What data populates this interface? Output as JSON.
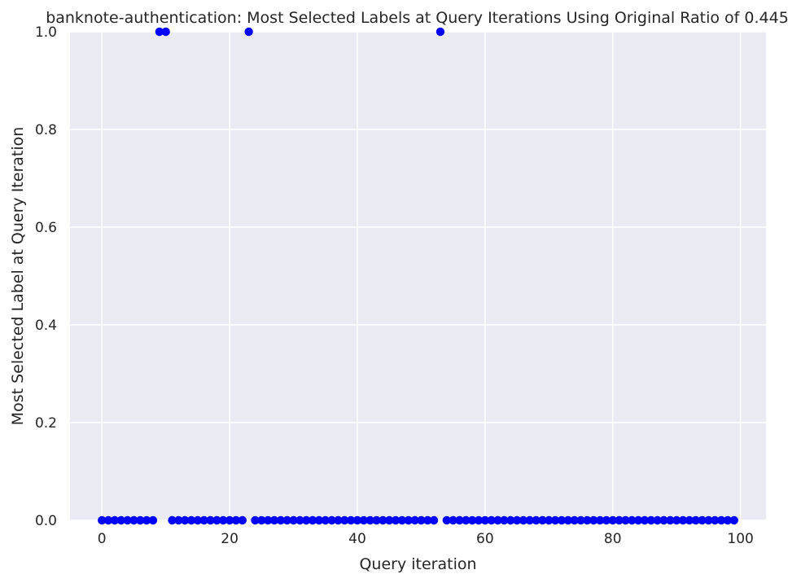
{
  "chart_data": {
    "type": "scatter",
    "title": "banknote-authentication: Most Selected Labels at Query Iterations Using Original Ratio of 0.445",
    "xlabel": "Query iteration",
    "ylabel": "Most Selected Label at Query Iteration",
    "xlim": [
      -5,
      104
    ],
    "ylim": [
      0,
      1
    ],
    "xticks": [
      0,
      20,
      40,
      60,
      80,
      100
    ],
    "yticks": [
      0.0,
      0.2,
      0.4,
      0.6,
      0.8,
      1.0
    ],
    "xtick_labels": [
      "0",
      "20",
      "40",
      "60",
      "80",
      "100"
    ],
    "ytick_labels": [
      "0.0",
      "0.2",
      "0.4",
      "0.6",
      "0.8",
      "1.0"
    ],
    "grid": true,
    "colors": {
      "background": "#eaeaf2",
      "grid": "#ffffff",
      "marker": "#0000ff"
    },
    "x": [
      0,
      1,
      2,
      3,
      4,
      5,
      6,
      7,
      8,
      9,
      10,
      11,
      12,
      13,
      14,
      15,
      16,
      17,
      18,
      19,
      20,
      21,
      22,
      23,
      24,
      25,
      26,
      27,
      28,
      29,
      30,
      31,
      32,
      33,
      34,
      35,
      36,
      37,
      38,
      39,
      40,
      41,
      42,
      43,
      44,
      45,
      46,
      47,
      48,
      49,
      50,
      51,
      52,
      53,
      54,
      55,
      56,
      57,
      58,
      59,
      60,
      61,
      62,
      63,
      64,
      65,
      66,
      67,
      68,
      69,
      70,
      71,
      72,
      73,
      74,
      75,
      76,
      77,
      78,
      79,
      80,
      81,
      82,
      83,
      84,
      85,
      86,
      87,
      88,
      89,
      90,
      91,
      92,
      93,
      94,
      95,
      96,
      97,
      98,
      99
    ],
    "y": [
      0,
      0,
      0,
      0,
      0,
      0,
      0,
      0,
      0,
      1,
      1,
      0,
      0,
      0,
      0,
      0,
      0,
      0,
      0,
      0,
      0,
      0,
      0,
      1,
      0,
      0,
      0,
      0,
      0,
      0,
      0,
      0,
      0,
      0,
      0,
      0,
      0,
      0,
      0,
      0,
      0,
      0,
      0,
      0,
      0,
      0,
      0,
      0,
      0,
      0,
      0,
      0,
      0,
      1,
      0,
      0,
      0,
      0,
      0,
      0,
      0,
      0,
      0,
      0,
      0,
      0,
      0,
      0,
      0,
      0,
      0,
      0,
      0,
      0,
      0,
      0,
      0,
      0,
      0,
      0,
      0,
      0,
      0,
      0,
      0,
      0,
      0,
      0,
      0,
      0,
      0,
      0,
      0,
      0,
      0,
      0,
      0,
      0,
      0,
      0
    ]
  }
}
